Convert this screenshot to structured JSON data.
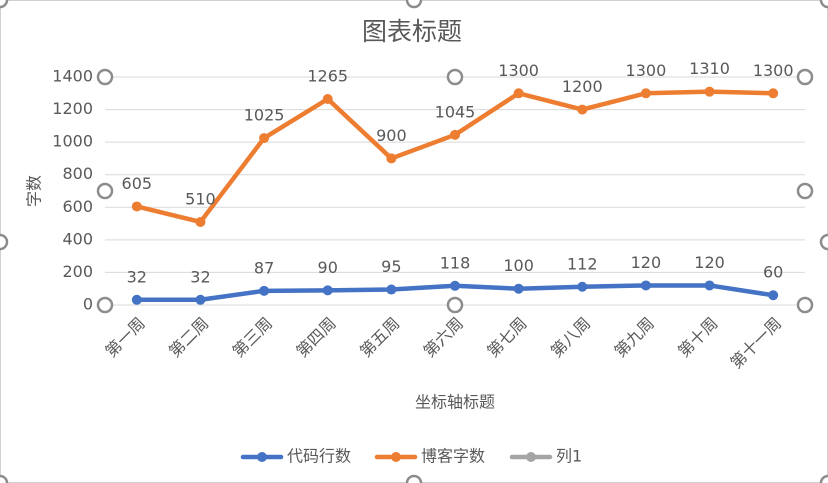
{
  "chart_data": {
    "type": "line",
    "title": "图表标题",
    "x_label": "坐标轴标题",
    "y_label": "字数",
    "categories": [
      "第一周",
      "第二周",
      "第三周",
      "第四周",
      "第五周",
      "第六周",
      "第七周",
      "第八周",
      "第九周",
      "第十周",
      "第十一周"
    ],
    "series": [
      {
        "name": "代码行数",
        "color": "#4472c4",
        "values": [
          32,
          32,
          87,
          90,
          95,
          118,
          100,
          112,
          120,
          120,
          60
        ]
      },
      {
        "name": "博客字数",
        "color": "#ed7d31",
        "values": [
          605,
          510,
          1025,
          1265,
          900,
          1045,
          1300,
          1200,
          1300,
          1310,
          1300
        ]
      },
      {
        "name": "列1",
        "color": "#a5a5a5",
        "values": [
          null,
          null,
          null,
          null,
          null,
          null,
          null,
          null,
          null,
          null,
          null
        ]
      }
    ],
    "ylim": [
      0,
      1400
    ],
    "yticks": [
      0,
      200,
      400,
      600,
      800,
      1000,
      1200,
      1400
    ],
    "grid": true,
    "data_labels": true,
    "legend": "bottom"
  }
}
